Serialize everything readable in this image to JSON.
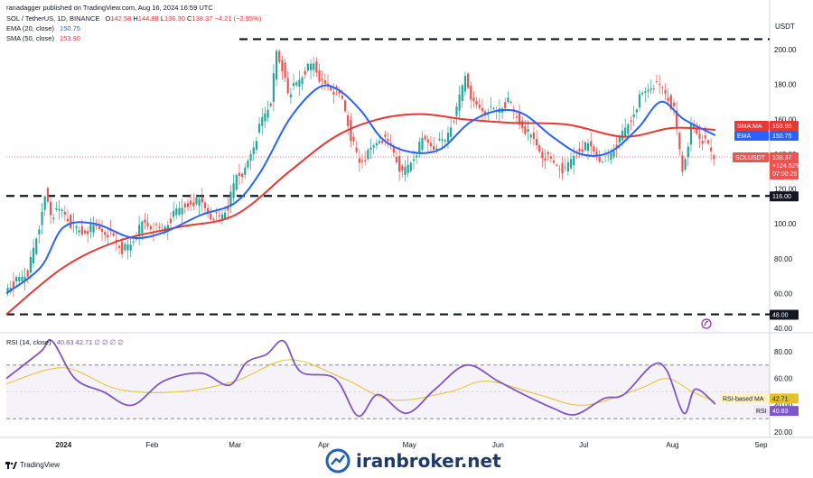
{
  "header": {
    "published_by": "ranadagger published on TradingView.com, Aug 16, 2024 16:59 UTC",
    "symbol_line": "SOL / TetherUS, 1D, BINANCE",
    "ohlc": {
      "o_label": "O",
      "o": "142.58",
      "h_label": "H",
      "h": "144.88",
      "l_label": "L",
      "l": "136.30",
      "c_label": "C",
      "c": "138.37",
      "chg": "−4.21 (−2.95%)"
    },
    "ema_label": "EMA (20, close)",
    "ema_value": "150.75",
    "sma_label": "SMA (50, close)",
    "sma_value": "153.90",
    "rsi_label": "RSI (14, close)",
    "rsi_values": "40.83  42.71  ∅  ∅  ∅  ∅"
  },
  "price_axis": {
    "currency": "USDT",
    "ticks": [
      "200.00",
      "180.00",
      "160.00",
      "140.00",
      "120.00",
      "100.00",
      "80.00",
      "60.00",
      "40.00"
    ]
  },
  "rsi_axis": {
    "ticks": [
      "80.00",
      "60.00",
      "40.00",
      "20.00"
    ]
  },
  "time_axis": {
    "ticks": [
      "2024",
      "Feb",
      "Mar",
      "Apr",
      "May",
      "Jun",
      "Jul",
      "Aug",
      "Sep"
    ]
  },
  "tags": {
    "sma_ma": {
      "label": "SMA:MA",
      "value": "153.90"
    },
    "ema": {
      "label": "EMA",
      "value": "150.75"
    },
    "solusdt": {
      "label": "SOLUSDT",
      "value": "138.37",
      "pct": "+124.52%",
      "time": "07:00:25"
    },
    "level_upper": "116.00",
    "level_lower": "48.00",
    "rsi_ma": {
      "label": "RSI-based MA",
      "value": "42.71"
    },
    "rsi": {
      "label": "RSI",
      "value": "40.83"
    }
  },
  "footer": {
    "brand": "TradingView",
    "watermark": "iranbroker.net"
  },
  "colors": {
    "up": "#26a69a",
    "down": "#ef5350",
    "ema": "#2962ff",
    "sma": "#e53935",
    "rsi": "#7e57c2",
    "rsi_ma": "#e6c229",
    "level": "#131722"
  },
  "chart_data": {
    "type": "candlestick",
    "title": "SOL / TetherUS, 1D, BINANCE",
    "ylabel": "USDT",
    "ylim": [
      40,
      210
    ],
    "horizontal_levels": [
      206,
      116,
      48
    ],
    "x_range": [
      "2023-12-12",
      "2024-09-04"
    ],
    "close_series": [
      [
        "2023-12-12",
        62
      ],
      [
        "2023-12-20",
        72
      ],
      [
        "2023-12-24",
        98
      ],
      [
        "2023-12-26",
        118
      ],
      [
        "2023-12-28",
        105
      ],
      [
        "2024-01-01",
        108
      ],
      [
        "2024-01-04",
        100
      ],
      [
        "2024-01-08",
        95
      ],
      [
        "2024-01-12",
        98
      ],
      [
        "2024-01-16",
        96
      ],
      [
        "2024-01-19",
        92
      ],
      [
        "2024-01-22",
        85
      ],
      [
        "2024-01-25",
        88
      ],
      [
        "2024-01-29",
        100
      ],
      [
        "2024-02-01",
        98
      ],
      [
        "2024-02-05",
        96
      ],
      [
        "2024-02-09",
        105
      ],
      [
        "2024-02-14",
        112
      ],
      [
        "2024-02-18",
        113
      ],
      [
        "2024-02-22",
        105
      ],
      [
        "2024-02-25",
        103
      ],
      [
        "2024-02-28",
        110
      ],
      [
        "2024-03-02",
        128
      ],
      [
        "2024-03-05",
        130
      ],
      [
        "2024-03-08",
        145
      ],
      [
        "2024-03-11",
        160
      ],
      [
        "2024-03-14",
        170
      ],
      [
        "2024-03-16",
        198
      ],
      [
        "2024-03-18",
        190
      ],
      [
        "2024-03-20",
        175
      ],
      [
        "2024-03-23",
        180
      ],
      [
        "2024-03-26",
        188
      ],
      [
        "2024-03-29",
        192
      ],
      [
        "2024-04-01",
        180
      ],
      [
        "2024-04-04",
        178
      ],
      [
        "2024-04-08",
        172
      ],
      [
        "2024-04-11",
        150
      ],
      [
        "2024-04-14",
        135
      ],
      [
        "2024-04-17",
        140
      ],
      [
        "2024-04-21",
        150
      ],
      [
        "2024-04-25",
        145
      ],
      [
        "2024-04-29",
        128
      ],
      [
        "2024-05-02",
        135
      ],
      [
        "2024-05-06",
        148
      ],
      [
        "2024-05-10",
        145
      ],
      [
        "2024-05-14",
        148
      ],
      [
        "2024-05-18",
        165
      ],
      [
        "2024-05-21",
        185
      ],
      [
        "2024-05-24",
        168
      ],
      [
        "2024-05-28",
        165
      ],
      [
        "2024-06-01",
        165
      ],
      [
        "2024-06-05",
        170
      ],
      [
        "2024-06-09",
        158
      ],
      [
        "2024-06-13",
        150
      ],
      [
        "2024-06-17",
        140
      ],
      [
        "2024-06-21",
        135
      ],
      [
        "2024-06-25",
        130
      ],
      [
        "2024-06-29",
        142
      ],
      [
        "2024-07-03",
        145
      ],
      [
        "2024-07-07",
        138
      ],
      [
        "2024-07-10",
        138
      ],
      [
        "2024-07-14",
        148
      ],
      [
        "2024-07-18",
        160
      ],
      [
        "2024-07-21",
        172
      ],
      [
        "2024-07-25",
        180
      ],
      [
        "2024-07-29",
        178
      ],
      [
        "2024-08-02",
        165
      ],
      [
        "2024-08-05",
        130
      ],
      [
        "2024-08-08",
        155
      ],
      [
        "2024-08-11",
        150
      ],
      [
        "2024-08-14",
        145
      ],
      [
        "2024-08-16",
        138.37
      ]
    ],
    "series": [
      {
        "name": "EMA (20, close)",
        "last": 150.75,
        "values": [
          [
            "2023-12-12",
            60
          ],
          [
            "2023-12-24",
            75
          ],
          [
            "2024-01-01",
            98
          ],
          [
            "2024-01-12",
            100
          ],
          [
            "2024-01-25",
            92
          ],
          [
            "2024-02-05",
            95
          ],
          [
            "2024-02-18",
            105
          ],
          [
            "2024-03-01",
            112
          ],
          [
            "2024-03-10",
            130
          ],
          [
            "2024-03-20",
            160
          ],
          [
            "2024-03-30",
            178
          ],
          [
            "2024-04-06",
            177
          ],
          [
            "2024-04-14",
            165
          ],
          [
            "2024-04-22",
            148
          ],
          [
            "2024-05-02",
            141
          ],
          [
            "2024-05-12",
            143
          ],
          [
            "2024-05-22",
            158
          ],
          [
            "2024-06-01",
            165
          ],
          [
            "2024-06-10",
            163
          ],
          [
            "2024-06-20",
            150
          ],
          [
            "2024-06-30",
            140
          ],
          [
            "2024-07-10",
            141
          ],
          [
            "2024-07-20",
            155
          ],
          [
            "2024-07-28",
            170
          ],
          [
            "2024-08-05",
            160
          ],
          [
            "2024-08-16",
            150.75
          ]
        ]
      },
      {
        "name": "SMA (50, close)",
        "last": 153.9,
        "values": [
          [
            "2023-12-12",
            48
          ],
          [
            "2024-01-01",
            75
          ],
          [
            "2024-01-20",
            90
          ],
          [
            "2024-02-10",
            98
          ],
          [
            "2024-03-01",
            105
          ],
          [
            "2024-03-20",
            130
          ],
          [
            "2024-04-05",
            150
          ],
          [
            "2024-04-20",
            160
          ],
          [
            "2024-05-05",
            163
          ],
          [
            "2024-05-20",
            160
          ],
          [
            "2024-06-05",
            158
          ],
          [
            "2024-06-25",
            157
          ],
          [
            "2024-07-15",
            150
          ],
          [
            "2024-08-01",
            155
          ],
          [
            "2024-08-16",
            153.9
          ]
        ]
      },
      {
        "name": "RSI (14, close)",
        "last": 40.83,
        "values": [
          [
            "2023-12-12",
            60
          ],
          [
            "2023-12-24",
            80
          ],
          [
            "2023-12-28",
            88
          ],
          [
            "2024-01-05",
            60
          ],
          [
            "2024-01-15",
            50
          ],
          [
            "2024-01-25",
            40
          ],
          [
            "2024-02-05",
            58
          ],
          [
            "2024-02-18",
            64
          ],
          [
            "2024-02-28",
            55
          ],
          [
            "2024-03-05",
            72
          ],
          [
            "2024-03-12",
            78
          ],
          [
            "2024-03-18",
            88
          ],
          [
            "2024-03-24",
            65
          ],
          [
            "2024-04-05",
            60
          ],
          [
            "2024-04-13",
            32
          ],
          [
            "2024-04-20",
            48
          ],
          [
            "2024-04-30",
            34
          ],
          [
            "2024-05-10",
            52
          ],
          [
            "2024-05-21",
            70
          ],
          [
            "2024-06-01",
            58
          ],
          [
            "2024-06-10",
            48
          ],
          [
            "2024-06-20",
            38
          ],
          [
            "2024-06-28",
            33
          ],
          [
            "2024-07-08",
            45
          ],
          [
            "2024-07-15",
            48
          ],
          [
            "2024-07-25",
            70
          ],
          [
            "2024-07-30",
            66
          ],
          [
            "2024-08-05",
            34
          ],
          [
            "2024-08-09",
            52
          ],
          [
            "2024-08-16",
            40.83
          ]
        ]
      },
      {
        "name": "RSI-based MA",
        "last": 42.71,
        "values": [
          [
            "2023-12-12",
            56
          ],
          [
            "2024-01-01",
            68
          ],
          [
            "2024-01-20",
            52
          ],
          [
            "2024-02-10",
            50
          ],
          [
            "2024-03-01",
            58
          ],
          [
            "2024-03-20",
            74
          ],
          [
            "2024-04-08",
            60
          ],
          [
            "2024-04-25",
            44
          ],
          [
            "2024-05-15",
            50
          ],
          [
            "2024-05-28",
            58
          ],
          [
            "2024-06-15",
            48
          ],
          [
            "2024-07-01",
            40
          ],
          [
            "2024-07-20",
            52
          ],
          [
            "2024-07-30",
            60
          ],
          [
            "2024-08-08",
            50
          ],
          [
            "2024-08-16",
            42.71
          ]
        ]
      }
    ],
    "rsi_ylim": [
      20,
      90
    ],
    "rsi_bands": [
      70,
      30
    ]
  }
}
